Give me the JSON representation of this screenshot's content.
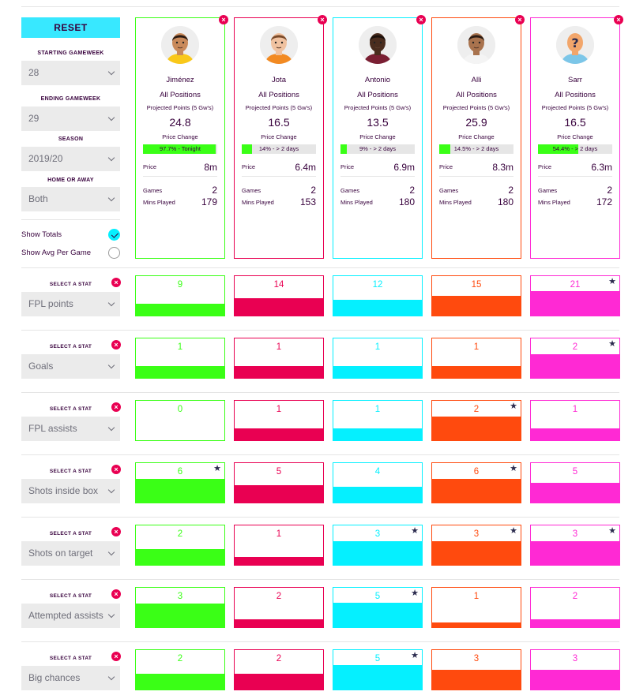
{
  "sidebar": {
    "reset_label": "RESET",
    "starting_gw_label": "STARTING GAMEWEEK",
    "starting_gw_value": "28",
    "ending_gw_label": "ENDING GAMEWEEK",
    "ending_gw_value": "29",
    "season_label": "SEASON",
    "season_value": "2019/20",
    "home_away_label": "HOME OR AWAY",
    "home_away_value": "Both",
    "show_totals_label": "Show Totals",
    "show_avg_label": "Show Avg Per Game"
  },
  "card_labels": {
    "projected": "Projected Points (5 Gw's)",
    "price_change": "Price Change",
    "price": "Price",
    "games": "Games",
    "mins": "Mins Played"
  },
  "players": [
    {
      "name": "Jiménez",
      "position": "All Positions",
      "projected": "24.8",
      "price_change_text": "97.7% - Tonight",
      "price_change_pct": 97.7,
      "price": "8m",
      "games": "2",
      "mins": "179",
      "color": "#3aff16",
      "skin": "#c98a5b",
      "hair": "#2b1a12",
      "shirt": "#f9c81a"
    },
    {
      "name": "Jota",
      "position": "All Positions",
      "projected": "16.5",
      "price_change_text": "14% - > 2 days",
      "price_change_pct": 14,
      "price": "6.4m",
      "games": "2",
      "mins": "153",
      "color": "#e90052",
      "skin": "#f0c2a0",
      "hair": "#7a4a2a",
      "shirt": "#f28a22"
    },
    {
      "name": "Antonio",
      "position": "All Positions",
      "projected": "13.5",
      "price_change_text": "9% - > 2 days",
      "price_change_pct": 9,
      "price": "6.9m",
      "games": "2",
      "mins": "180",
      "color": "#05f0ff",
      "skin": "#4a2c1e",
      "hair": "#1a0f0a",
      "shirt": "#7a1f33"
    },
    {
      "name": "Alli",
      "position": "All Positions",
      "projected": "25.9",
      "price_change_text": "14.5% - > 2 days",
      "price_change_pct": 14.5,
      "price": "8.3m",
      "games": "2",
      "mins": "180",
      "color": "#ff4a0e",
      "skin": "#a9734e",
      "hair": "#2a1a12",
      "shirt": "#f4f4f4"
    },
    {
      "name": "Sarr",
      "position": "All Positions",
      "projected": "16.5",
      "price_change_text": "54.4% - > 2 days",
      "price_change_pct": 54.4,
      "price": "6.3m",
      "games": "2",
      "mins": "172",
      "color": "#ff29d4",
      "skin": "#f2a66b",
      "hair": "#f2a66b",
      "shirt": "#7cc6e8"
    }
  ],
  "stats": [
    {
      "select_label": "SELECT A STAT",
      "name": "FPL points",
      "values": [
        {
          "v": "9",
          "fill": 0.3,
          "star": false
        },
        {
          "v": "14",
          "fill": 0.45,
          "star": false
        },
        {
          "v": "12",
          "fill": 0.4,
          "star": false
        },
        {
          "v": "15",
          "fill": 0.5,
          "star": false
        },
        {
          "v": "21",
          "fill": 0.62,
          "star": true
        }
      ]
    },
    {
      "select_label": "SELECT A STAT",
      "name": "Goals",
      "values": [
        {
          "v": "1",
          "fill": 0.3,
          "star": false
        },
        {
          "v": "1",
          "fill": 0.3,
          "star": false
        },
        {
          "v": "1",
          "fill": 0.3,
          "star": false
        },
        {
          "v": "1",
          "fill": 0.3,
          "star": false
        },
        {
          "v": "2",
          "fill": 0.6,
          "star": true
        }
      ]
    },
    {
      "select_label": "SELECT A STAT",
      "name": "FPL assists",
      "values": [
        {
          "v": "0",
          "fill": 0,
          "star": false
        },
        {
          "v": "1",
          "fill": 0.3,
          "star": false
        },
        {
          "v": "1",
          "fill": 0.3,
          "star": false
        },
        {
          "v": "2",
          "fill": 0.6,
          "star": true
        },
        {
          "v": "1",
          "fill": 0.3,
          "star": false
        }
      ]
    },
    {
      "select_label": "SELECT A STAT",
      "name": "Shots inside box",
      "values": [
        {
          "v": "6",
          "fill": 0.6,
          "star": true
        },
        {
          "v": "5",
          "fill": 0.45,
          "star": false
        },
        {
          "v": "4",
          "fill": 0.4,
          "star": false
        },
        {
          "v": "6",
          "fill": 0.6,
          "star": true
        },
        {
          "v": "5",
          "fill": 0.5,
          "star": false
        }
      ]
    },
    {
      "select_label": "SELECT A STAT",
      "name": "Shots on target",
      "values": [
        {
          "v": "2",
          "fill": 0.4,
          "star": false
        },
        {
          "v": "1",
          "fill": 0.2,
          "star": false
        },
        {
          "v": "3",
          "fill": 0.6,
          "star": true
        },
        {
          "v": "3",
          "fill": 0.6,
          "star": true
        },
        {
          "v": "3",
          "fill": 0.6,
          "star": true
        }
      ]
    },
    {
      "select_label": "SELECT A STAT",
      "name": "Attempted assists",
      "values": [
        {
          "v": "3",
          "fill": 0.6,
          "star": false
        },
        {
          "v": "2",
          "fill": 0.2,
          "star": false
        },
        {
          "v": "5",
          "fill": 0.62,
          "star": true
        },
        {
          "v": "1",
          "fill": 0.12,
          "star": false
        },
        {
          "v": "2",
          "fill": 0.2,
          "star": false
        }
      ]
    },
    {
      "select_label": "SELECT A STAT",
      "name": "Big chances",
      "values": [
        {
          "v": "2",
          "fill": 0.4,
          "star": false
        },
        {
          "v": "2",
          "fill": 0.4,
          "star": false
        },
        {
          "v": "5",
          "fill": 0.62,
          "star": true
        },
        {
          "v": "3",
          "fill": 0.5,
          "star": false
        },
        {
          "v": "3",
          "fill": 0.5,
          "star": false
        }
      ]
    }
  ],
  "icons": {
    "remove": "close-icon",
    "best": "star-icon",
    "dropdown": "chevron-down-icon"
  }
}
